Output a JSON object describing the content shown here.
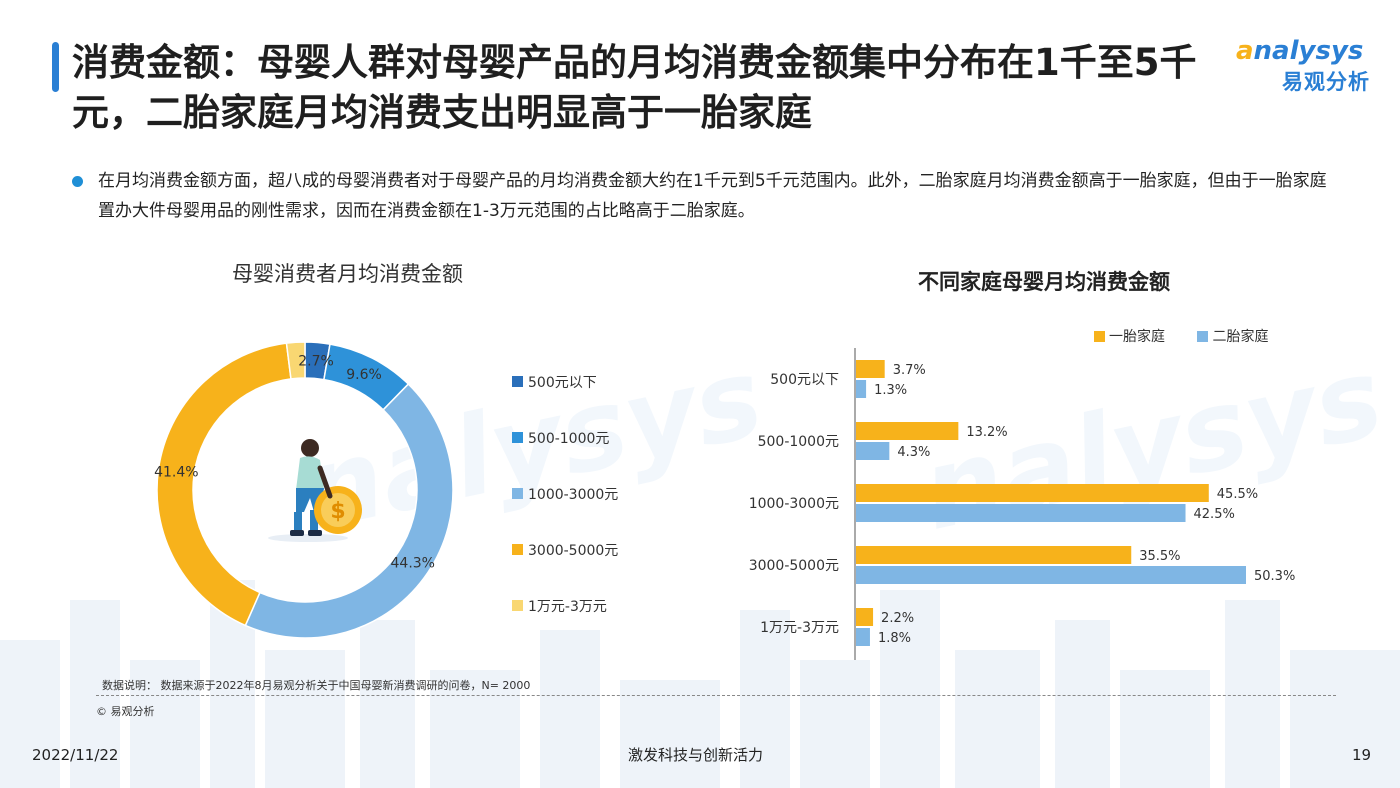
{
  "page": {
    "title": "消费金额：母婴人群对母婴产品的月均消费金额集中分布在1千至5千元，二胎家庭月均消费支出明显高于一胎家庭",
    "logo": {
      "brand": "nalysys",
      "brand_initial": "a",
      "chinese": "易观分析"
    },
    "bullet": "在月均消费金额方面，超八成的母婴消费者对于母婴产品的月均消费金额大约在1千元到5千元范围内。此外，二胎家庭月均消费金额高于一胎家庭，但由于一胎家庭置办大件母婴用品的刚性需求，因而在消费金额在1-3万元范围的占比略高于二胎家庭。",
    "note": "数据说明： 数据来源于2022年8月易观分析关于中国母婴新消费调研的问卷，N= 2000",
    "copyright": "© 易观分析",
    "footer": {
      "date": "2022/11/22",
      "slogan": "激发科技与创新活力",
      "page_number": "19"
    },
    "illustration": "person-with-coin-icon"
  },
  "chart_data": [
    {
      "type": "pie",
      "style": "donut",
      "title": "母婴消费者月均消费金额",
      "categories": [
        "500元以下",
        "500-1000元",
        "1000-3000元",
        "3000-5000元",
        "1万元-3万元"
      ],
      "values": [
        2.7,
        9.6,
        44.3,
        41.4,
        2.0
      ],
      "data_labels": [
        "2.7%",
        "9.6%",
        "44.3%",
        "41.4%",
        ""
      ],
      "colors": [
        "#2a6fba",
        "#2e92d9",
        "#7fb6e4",
        "#f7b21b",
        "#f9d772"
      ],
      "legend": "right"
    },
    {
      "type": "bar",
      "orientation": "horizontal",
      "title": "不同家庭母婴月均消费金额",
      "categories": [
        "500元以下",
        "500-1000元",
        "1000-3000元",
        "3000-5000元",
        "1万元-3万元"
      ],
      "series": [
        {
          "name": "一胎家庭",
          "values": [
            3.7,
            13.2,
            45.5,
            35.5,
            2.2
          ],
          "color": "#f7b21b"
        },
        {
          "name": "二胎家庭",
          "values": [
            1.3,
            4.3,
            42.5,
            50.3,
            1.8
          ],
          "color": "#7fb6e4"
        }
      ],
      "unit": "%",
      "legend": "top-right",
      "grid": false
    }
  ]
}
